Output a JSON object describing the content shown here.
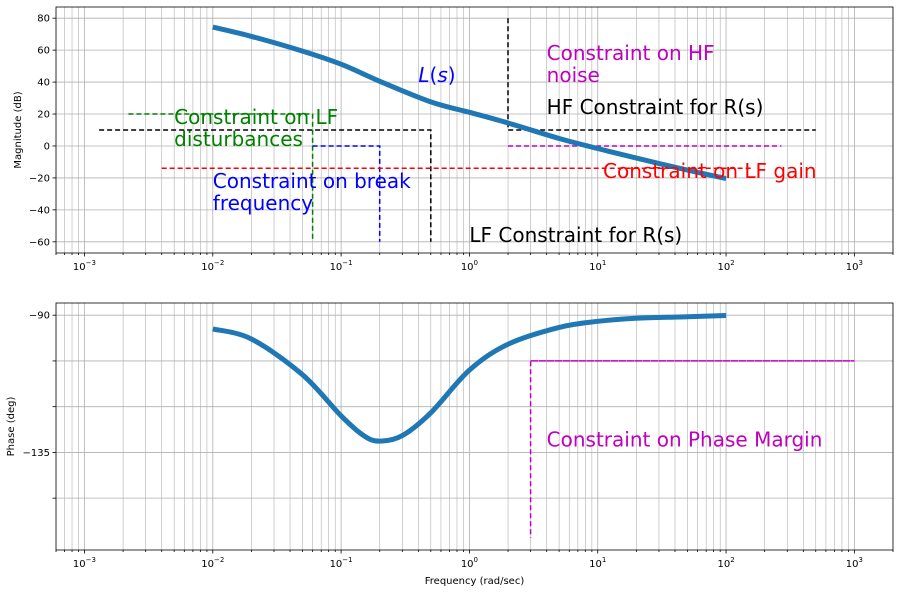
{
  "chart_data": [
    {
      "type": "line",
      "panel": "magnitude",
      "ylabel": "Magnitude (dB)",
      "xscale": "log",
      "xlim": [
        0.0006,
        2000
      ],
      "ylim": [
        -67,
        87
      ],
      "grid": true,
      "x_tick_labels": [
        "10^-3",
        "10^-2",
        "10^-1",
        "10^0",
        "10^1",
        "10^2",
        "10^3"
      ],
      "y_ticks": [
        -60,
        -40,
        -20,
        0,
        20,
        40,
        60,
        80
      ],
      "y_tick_labels": [
        "−60",
        "−40",
        "−20",
        "0",
        "20",
        "40",
        "60",
        "80"
      ],
      "series": [
        {
          "name": "L(s)",
          "color": "#1f77b4",
          "x": [
            0.01,
            0.02,
            0.05,
            0.1,
            0.2,
            0.5,
            1,
            2,
            5,
            10,
            20,
            50,
            100
          ],
          "y": [
            74.4,
            68.6,
            59.4,
            51.2,
            40.5,
            27.6,
            21.1,
            14.4,
            4.7,
            -1.6,
            -7.6,
            -15.1,
            -20.4
          ]
        }
      ],
      "constraints": [
        {
          "label": "Constraint on LF disturbances",
          "color": "#008000",
          "points": [
            [
              0.0022,
              20
            ],
            [
              0.06,
              20
            ],
            [
              0.06,
              -60
            ]
          ]
        },
        {
          "label": "Constraint on break frequency",
          "color": "#0000ff",
          "points": [
            [
              0.06,
              0
            ],
            [
              0.2,
              0
            ],
            [
              0.2,
              -60
            ]
          ]
        },
        {
          "label": "LF Constraint for R(s)",
          "color": "#000000",
          "points": [
            [
              0.0013,
              10
            ],
            [
              0.5,
              10
            ],
            [
              0.5,
              -60
            ]
          ]
        },
        {
          "label": "Constraint on LF gain",
          "color": "#ff0000",
          "points": [
            [
              0.004,
              -14
            ],
            [
              160,
              -14
            ]
          ]
        },
        {
          "label": "HF Constraint for R(s)",
          "color": "#000000",
          "points": [
            [
              2,
              80
            ],
            [
              2,
              10
            ],
            [
              500,
              10
            ]
          ]
        },
        {
          "label": "Constraint on HF noise",
          "color": "#bf00bf",
          "points": [
            [
              2,
              0
            ],
            [
              270,
              0
            ]
          ]
        }
      ],
      "annotations": [
        {
          "text": "L(s)",
          "color": "#0000ff",
          "x": 0.4,
          "y": 40
        },
        {
          "text": "Constraint on HF\nnoise",
          "color": "#bf00bf",
          "x": 4,
          "y": 40
        },
        {
          "text": "HF Constraint for R(s)",
          "color": "#000000",
          "x": 4,
          "y": 20
        },
        {
          "text": "Constraint on LF\ndisturbances",
          "color": "#008000",
          "x": 0.005,
          "y": 0
        },
        {
          "text": "Constraint on break\nfrequency",
          "color": "#0000ff",
          "x": 0.01,
          "y": -40
        },
        {
          "text": "Constraint on LF gain",
          "color": "#ff0000",
          "x": 11,
          "y": -20
        },
        {
          "text": "LF Constraint for R(s)",
          "color": "#000000",
          "x": 1,
          "y": -60
        }
      ]
    },
    {
      "type": "line",
      "panel": "phase",
      "xlabel": "Frequency (rad/sec)",
      "ylabel": "Phase (deg)",
      "xscale": "log",
      "xlim": [
        0.0006,
        2000
      ],
      "ylim": [
        -167,
        -86
      ],
      "grid": true,
      "x_tick_labels": [
        "10^-3",
        "10^-2",
        "10^-1",
        "10^0",
        "10^1",
        "10^2",
        "10^3"
      ],
      "y_ticks": [
        -90,
        -135
      ],
      "y_tick_labels": [
        "−90",
        "−135"
      ],
      "y_grid": [
        -90,
        -105,
        -120,
        -135,
        -150
      ],
      "series": [
        {
          "name": "L(s)",
          "color": "#1f77b4",
          "x": [
            0.01,
            0.02,
            0.05,
            0.1,
            0.15,
            0.2,
            0.3,
            0.5,
            1,
            2,
            5,
            10,
            20,
            50,
            100
          ],
          "y": [
            -94.5,
            -97.8,
            -109.5,
            -123,
            -129.5,
            -131.3,
            -129.5,
            -122,
            -108,
            -99.5,
            -94,
            -92,
            -91,
            -90.5,
            -90.1
          ]
        }
      ],
      "constraints": [
        {
          "label": "Constraint on Phase Margin",
          "color": "#bf00bf",
          "points": [
            [
              3,
              -105
            ],
            [
              1000,
              -105
            ],
            [
              3,
              -105
            ],
            [
              3,
              -163
            ]
          ]
        }
      ],
      "annotations": [
        {
          "text": "Constraint on Phase Margin",
          "color": "#bf00bf",
          "x": 4,
          "y": -133
        }
      ]
    }
  ]
}
